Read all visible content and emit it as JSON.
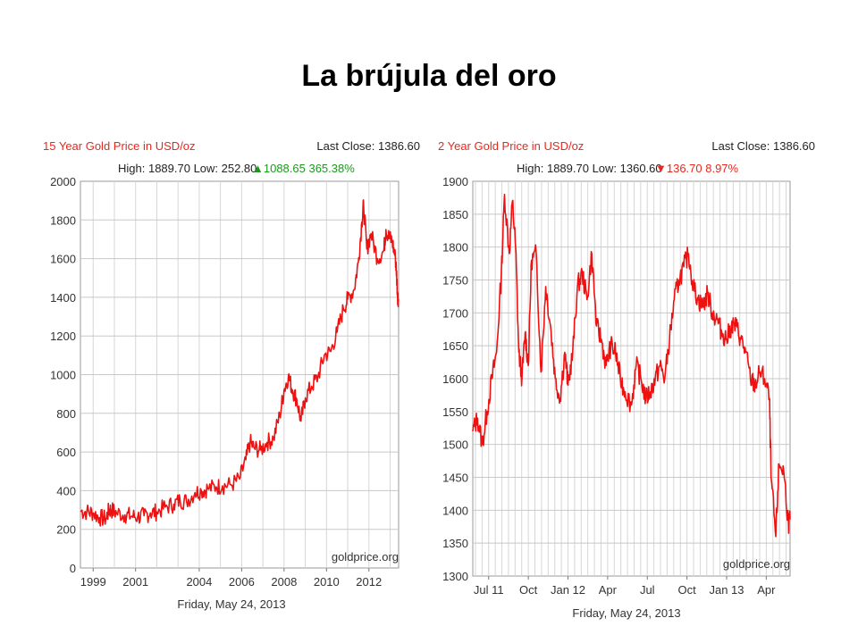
{
  "slide": {
    "title": "La brújula del oro"
  },
  "chart_data": [
    {
      "type": "line",
      "title": "15 Year Gold Price in USD/oz",
      "last_close_label": "Last Close: 1386.60",
      "stats_label": "High: 1889.70 Low: 252.80",
      "change_label": "▲1088.65 365.38%",
      "change_color": "#1a9a1a",
      "title_color": "#e8281e",
      "line_color": "#ee1111",
      "watermark": "goldprice.org",
      "date_label": "Friday, May 24, 2013",
      "xlabel": "",
      "ylabel": "",
      "xlim": [
        1998.4,
        2013.4
      ],
      "ylim": [
        0,
        2000
      ],
      "yticks": [
        0,
        200,
        400,
        600,
        800,
        1000,
        1200,
        1400,
        1600,
        1800,
        2000
      ],
      "xticks": [
        {
          "v": 1999,
          "label": "1999"
        },
        {
          "v": 2001,
          "label": "2001"
        },
        {
          "v": 2004,
          "label": "2004"
        },
        {
          "v": 2006,
          "label": "2006"
        },
        {
          "v": 2008,
          "label": "2008"
        },
        {
          "v": 2010,
          "label": "2010"
        },
        {
          "v": 2012,
          "label": "2012"
        }
      ],
      "grid": true,
      "series": [
        {
          "x": [
            1998.4,
            1998.7,
            1999.0,
            1999.3,
            1999.6,
            1999.75,
            1999.85,
            2000.1,
            2000.5,
            2000.8,
            2001.1,
            2001.4,
            2001.7,
            2002.0,
            2002.4,
            2002.8,
            2003.1,
            2003.4,
            2003.8,
            2004.1,
            2004.4,
            2004.8,
            2005.1,
            2005.5,
            2005.9,
            2006.2,
            2006.4,
            2006.6,
            2006.9,
            2007.2,
            2007.5,
            2007.8,
            2008.0,
            2008.2,
            2008.4,
            2008.6,
            2008.8,
            2009.0,
            2009.3,
            2009.6,
            2009.9,
            2010.2,
            2010.5,
            2010.8,
            2011.0,
            2011.3,
            2011.5,
            2011.67,
            2011.75,
            2011.9,
            2012.1,
            2012.4,
            2012.7,
            2012.8,
            2012.95,
            2013.1,
            2013.25,
            2013.3,
            2013.35,
            2013.4
          ],
          "y": [
            295,
            290,
            285,
            260,
            255,
            300,
            300,
            285,
            275,
            268,
            265,
            270,
            285,
            290,
            315,
            330,
            350,
            345,
            390,
            400,
            410,
            420,
            425,
            430,
            460,
            560,
            650,
            620,
            610,
            650,
            670,
            790,
            920,
            990,
            920,
            870,
            760,
            880,
            940,
            990,
            1100,
            1120,
            1220,
            1340,
            1390,
            1440,
            1580,
            1790,
            1880,
            1650,
            1730,
            1600,
            1640,
            1750,
            1710,
            1690,
            1600,
            1530,
            1410,
            1386
          ]
        }
      ]
    },
    {
      "type": "line",
      "title": "2 Year Gold Price in USD/oz",
      "last_close_label": "Last Close: 1386.60",
      "stats_label": "High: 1889.70 Low: 1360.60",
      "change_label": "▼136.70 8.97%",
      "change_color": "#e8281e",
      "title_color": "#e8281e",
      "line_color": "#ee1111",
      "watermark": "goldprice.org",
      "date_label": "Friday, May 24, 2013",
      "xlabel": "",
      "ylabel": "",
      "xlim": [
        2011.4,
        2013.4
      ],
      "ylim": [
        1300,
        1900
      ],
      "yticks": [
        1300,
        1350,
        1400,
        1450,
        1500,
        1550,
        1600,
        1650,
        1700,
        1750,
        1800,
        1850,
        1900
      ],
      "xticks": [
        {
          "v": 2011.5,
          "label": "Jul 11"
        },
        {
          "v": 2011.75,
          "label": "Oct"
        },
        {
          "v": 2012.0,
          "label": "Jan 12"
        },
        {
          "v": 2012.25,
          "label": "Apr"
        },
        {
          "v": 2012.5,
          "label": "Jul"
        },
        {
          "v": 2012.75,
          "label": "Oct"
        },
        {
          "v": 2013.0,
          "label": "Jan 13"
        },
        {
          "v": 2013.25,
          "label": "Apr"
        }
      ],
      "grid": true,
      "series": [
        {
          "x": [
            2011.4,
            2011.43,
            2011.46,
            2011.49,
            2011.52,
            2011.55,
            2011.58,
            2011.6,
            2011.63,
            2011.65,
            2011.67,
            2011.69,
            2011.71,
            2011.73,
            2011.75,
            2011.77,
            2011.8,
            2011.83,
            2011.86,
            2011.89,
            2011.92,
            2011.95,
            2011.98,
            2012.0,
            2012.03,
            2012.06,
            2012.09,
            2012.12,
            2012.15,
            2012.18,
            2012.21,
            2012.24,
            2012.27,
            2012.3,
            2012.33,
            2012.36,
            2012.4,
            2012.43,
            2012.46,
            2012.49,
            2012.52,
            2012.55,
            2012.58,
            2012.61,
            2012.64,
            2012.67,
            2012.7,
            2012.73,
            2012.76,
            2012.79,
            2012.82,
            2012.85,
            2012.88,
            2012.91,
            2012.94,
            2012.97,
            2013.0,
            2013.03,
            2013.06,
            2013.09,
            2013.12,
            2013.15,
            2013.18,
            2013.21,
            2013.24,
            2013.27,
            2013.28,
            2013.31,
            2013.33,
            2013.36,
            2013.39,
            2013.4
          ],
          "y": [
            1520,
            1540,
            1500,
            1550,
            1600,
            1640,
            1760,
            1880,
            1790,
            1870,
            1800,
            1640,
            1600,
            1670,
            1620,
            1780,
            1790,
            1610,
            1740,
            1680,
            1600,
            1570,
            1640,
            1590,
            1640,
            1740,
            1760,
            1720,
            1790,
            1680,
            1660,
            1620,
            1650,
            1640,
            1600,
            1580,
            1560,
            1620,
            1600,
            1570,
            1580,
            1600,
            1620,
            1600,
            1660,
            1720,
            1750,
            1770,
            1790,
            1740,
            1720,
            1710,
            1730,
            1700,
            1690,
            1670,
            1660,
            1680,
            1680,
            1660,
            1640,
            1600,
            1590,
            1610,
            1600,
            1570,
            1450,
            1360,
            1470,
            1460,
            1380,
            1386
          ]
        }
      ]
    }
  ]
}
